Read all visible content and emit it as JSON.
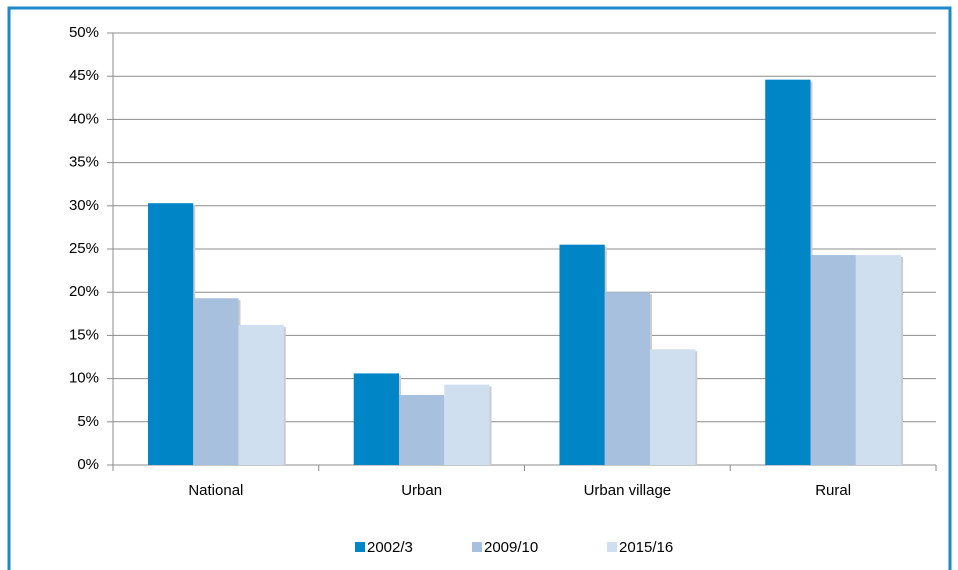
{
  "chart_data": {
    "type": "bar",
    "categories": [
      "National",
      "Urban",
      "Urban village",
      "Rural"
    ],
    "series": [
      {
        "name": "2002/3",
        "color": "#0085c7",
        "values": [
          30.3,
          10.6,
          25.5,
          44.6
        ]
      },
      {
        "name": "2009/10",
        "color": "#a7c0de",
        "values": [
          19.3,
          8.1,
          20.0,
          24.3
        ]
      },
      {
        "name": "2015/16",
        "color": "#d0dff0",
        "values": [
          16.2,
          9.3,
          13.4,
          24.3
        ]
      }
    ],
    "ylim": [
      0,
      50
    ],
    "yticks": [
      {
        "value": 0,
        "label": "0%"
      },
      {
        "value": 5,
        "label": "5%"
      },
      {
        "value": 10,
        "label": "10%"
      },
      {
        "value": 15,
        "label": "15%"
      },
      {
        "value": 20,
        "label": "20%"
      },
      {
        "value": 25,
        "label": "25%"
      },
      {
        "value": 30,
        "label": "30%"
      },
      {
        "value": 35,
        "label": "35%"
      },
      {
        "value": 40,
        "label": "40%"
      },
      {
        "value": 45,
        "label": "45%"
      },
      {
        "value": 50,
        "label": "50%"
      }
    ],
    "grid": true,
    "legend": "bottom"
  }
}
